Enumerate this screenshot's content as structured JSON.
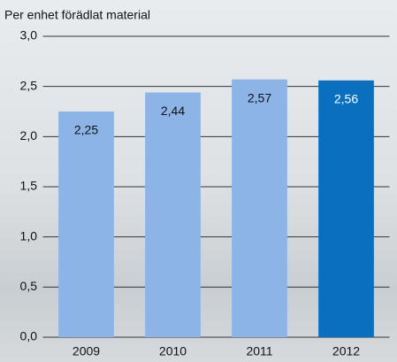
{
  "chart_data": {
    "type": "bar",
    "title": "Per enhet förädlat material",
    "categories": [
      "2009",
      "2010",
      "2011",
      "2012"
    ],
    "values": [
      2.25,
      2.44,
      2.57,
      2.56
    ],
    "value_labels": [
      "2,25",
      "2,44",
      "2,57",
      "2,56"
    ],
    "colors": [
      "#8db4e6",
      "#8db4e6",
      "#8db4e6",
      "#0a6fbf"
    ],
    "ylim": [
      0,
      3
    ],
    "yticks": [
      {
        "value": 0,
        "label": "0,0"
      },
      {
        "value": 0.5,
        "label": "0,5"
      },
      {
        "value": 1,
        "label": "1,0"
      },
      {
        "value": 1.5,
        "label": "1,5"
      },
      {
        "value": 2,
        "label": "2,0"
      },
      {
        "value": 2.5,
        "label": "2,5"
      },
      {
        "value": 3,
        "label": "3,0"
      }
    ],
    "grid": true
  }
}
